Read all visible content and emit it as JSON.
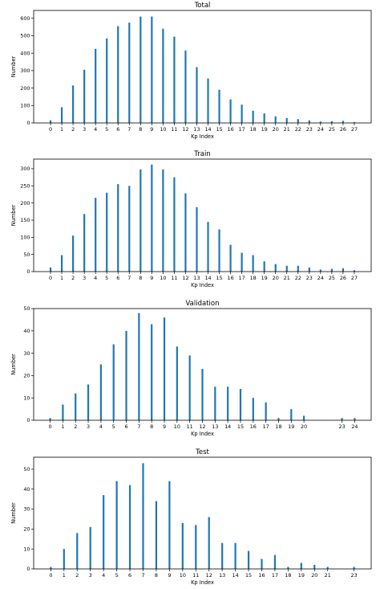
{
  "chart_data": [
    {
      "type": "bar",
      "title": "Total",
      "xlabel": "Kp Index",
      "ylabel": "Number",
      "xlim": [
        -1.5,
        28.5
      ],
      "ylim": [
        0,
        645
      ],
      "yticks": [
        0,
        100,
        200,
        300,
        400,
        500,
        600
      ],
      "xticks": [
        0,
        1,
        2,
        3,
        4,
        5,
        6,
        7,
        8,
        9,
        10,
        11,
        12,
        13,
        14,
        15,
        16,
        17,
        18,
        19,
        20,
        21,
        22,
        23,
        24,
        25,
        26,
        27
      ],
      "x": [
        0,
        1,
        2,
        3,
        4,
        5,
        6,
        7,
        8,
        9,
        10,
        11,
        12,
        13,
        14,
        15,
        16,
        17,
        18,
        19,
        20,
        21,
        22,
        23,
        24,
        25,
        26,
        27
      ],
      "values": [
        15,
        90,
        215,
        305,
        425,
        485,
        555,
        575,
        610,
        610,
        540,
        495,
        415,
        320,
        255,
        190,
        135,
        105,
        70,
        55,
        38,
        28,
        22,
        15,
        8,
        10,
        12,
        5
      ],
      "grid": false,
      "color": "#1f77b4"
    },
    {
      "type": "bar",
      "title": "Train",
      "xlabel": "Kp Index",
      "ylabel": "Number",
      "xlim": [
        -1.5,
        28.5
      ],
      "ylim": [
        0,
        328
      ],
      "yticks": [
        0,
        50,
        100,
        150,
        200,
        250,
        300
      ],
      "xticks": [
        0,
        1,
        2,
        3,
        4,
        5,
        6,
        7,
        8,
        9,
        10,
        11,
        12,
        13,
        14,
        15,
        16,
        17,
        18,
        19,
        20,
        21,
        22,
        23,
        24,
        25,
        26,
        27
      ],
      "x": [
        0,
        1,
        2,
        3,
        4,
        5,
        6,
        7,
        8,
        9,
        10,
        11,
        12,
        13,
        14,
        15,
        16,
        17,
        18,
        19,
        20,
        21,
        22,
        23,
        24,
        25,
        26,
        27
      ],
      "values": [
        12,
        48,
        105,
        168,
        215,
        230,
        255,
        250,
        298,
        312,
        298,
        275,
        228,
        188,
        145,
        123,
        78,
        55,
        48,
        30,
        22,
        17,
        17,
        12,
        6,
        8,
        10,
        4
      ],
      "grid": false,
      "color": "#1f77b4"
    },
    {
      "type": "bar",
      "title": "Validation",
      "xlabel": "Kp Index",
      "ylabel": "Number",
      "xlim": [
        -1.3,
        25.3
      ],
      "ylim": [
        0,
        50
      ],
      "yticks": [
        0,
        10,
        20,
        30,
        40,
        50
      ],
      "xticks": [
        0,
        1,
        2,
        3,
        4,
        5,
        6,
        7,
        8,
        9,
        10,
        11,
        12,
        13,
        14,
        15,
        16,
        17,
        18,
        19,
        20,
        23,
        24
      ],
      "x": [
        0,
        1,
        2,
        3,
        4,
        5,
        6,
        7,
        8,
        9,
        10,
        11,
        12,
        13,
        14,
        15,
        16,
        17,
        18,
        19,
        20,
        23,
        24
      ],
      "values": [
        1,
        7,
        12,
        16,
        25,
        34,
        40,
        48,
        43,
        46,
        33,
        29,
        23,
        15,
        15,
        14,
        10,
        8,
        1,
        5,
        2,
        1,
        1
      ],
      "grid": false,
      "color": "#1f77b4"
    },
    {
      "type": "bar",
      "title": "Test",
      "xlabel": "Kp Index",
      "ylabel": "Number",
      "xlim": [
        -1.3,
        24.3
      ],
      "ylim": [
        0,
        56
      ],
      "yticks": [
        0,
        10,
        20,
        30,
        40,
        50
      ],
      "xticks": [
        0,
        1,
        2,
        3,
        4,
        5,
        6,
        7,
        8,
        9,
        10,
        11,
        12,
        13,
        14,
        15,
        16,
        17,
        18,
        19,
        20,
        21,
        23
      ],
      "x": [
        0,
        1,
        2,
        3,
        4,
        5,
        6,
        7,
        8,
        9,
        10,
        11,
        12,
        13,
        14,
        15,
        16,
        17,
        18,
        19,
        20,
        21,
        23
      ],
      "values": [
        1,
        10,
        18,
        21,
        37,
        44,
        42,
        53,
        34,
        44,
        23,
        22,
        26,
        13,
        13,
        9,
        5,
        7,
        1,
        3,
        2,
        1,
        1
      ],
      "grid": false,
      "color": "#1f77b4"
    }
  ]
}
